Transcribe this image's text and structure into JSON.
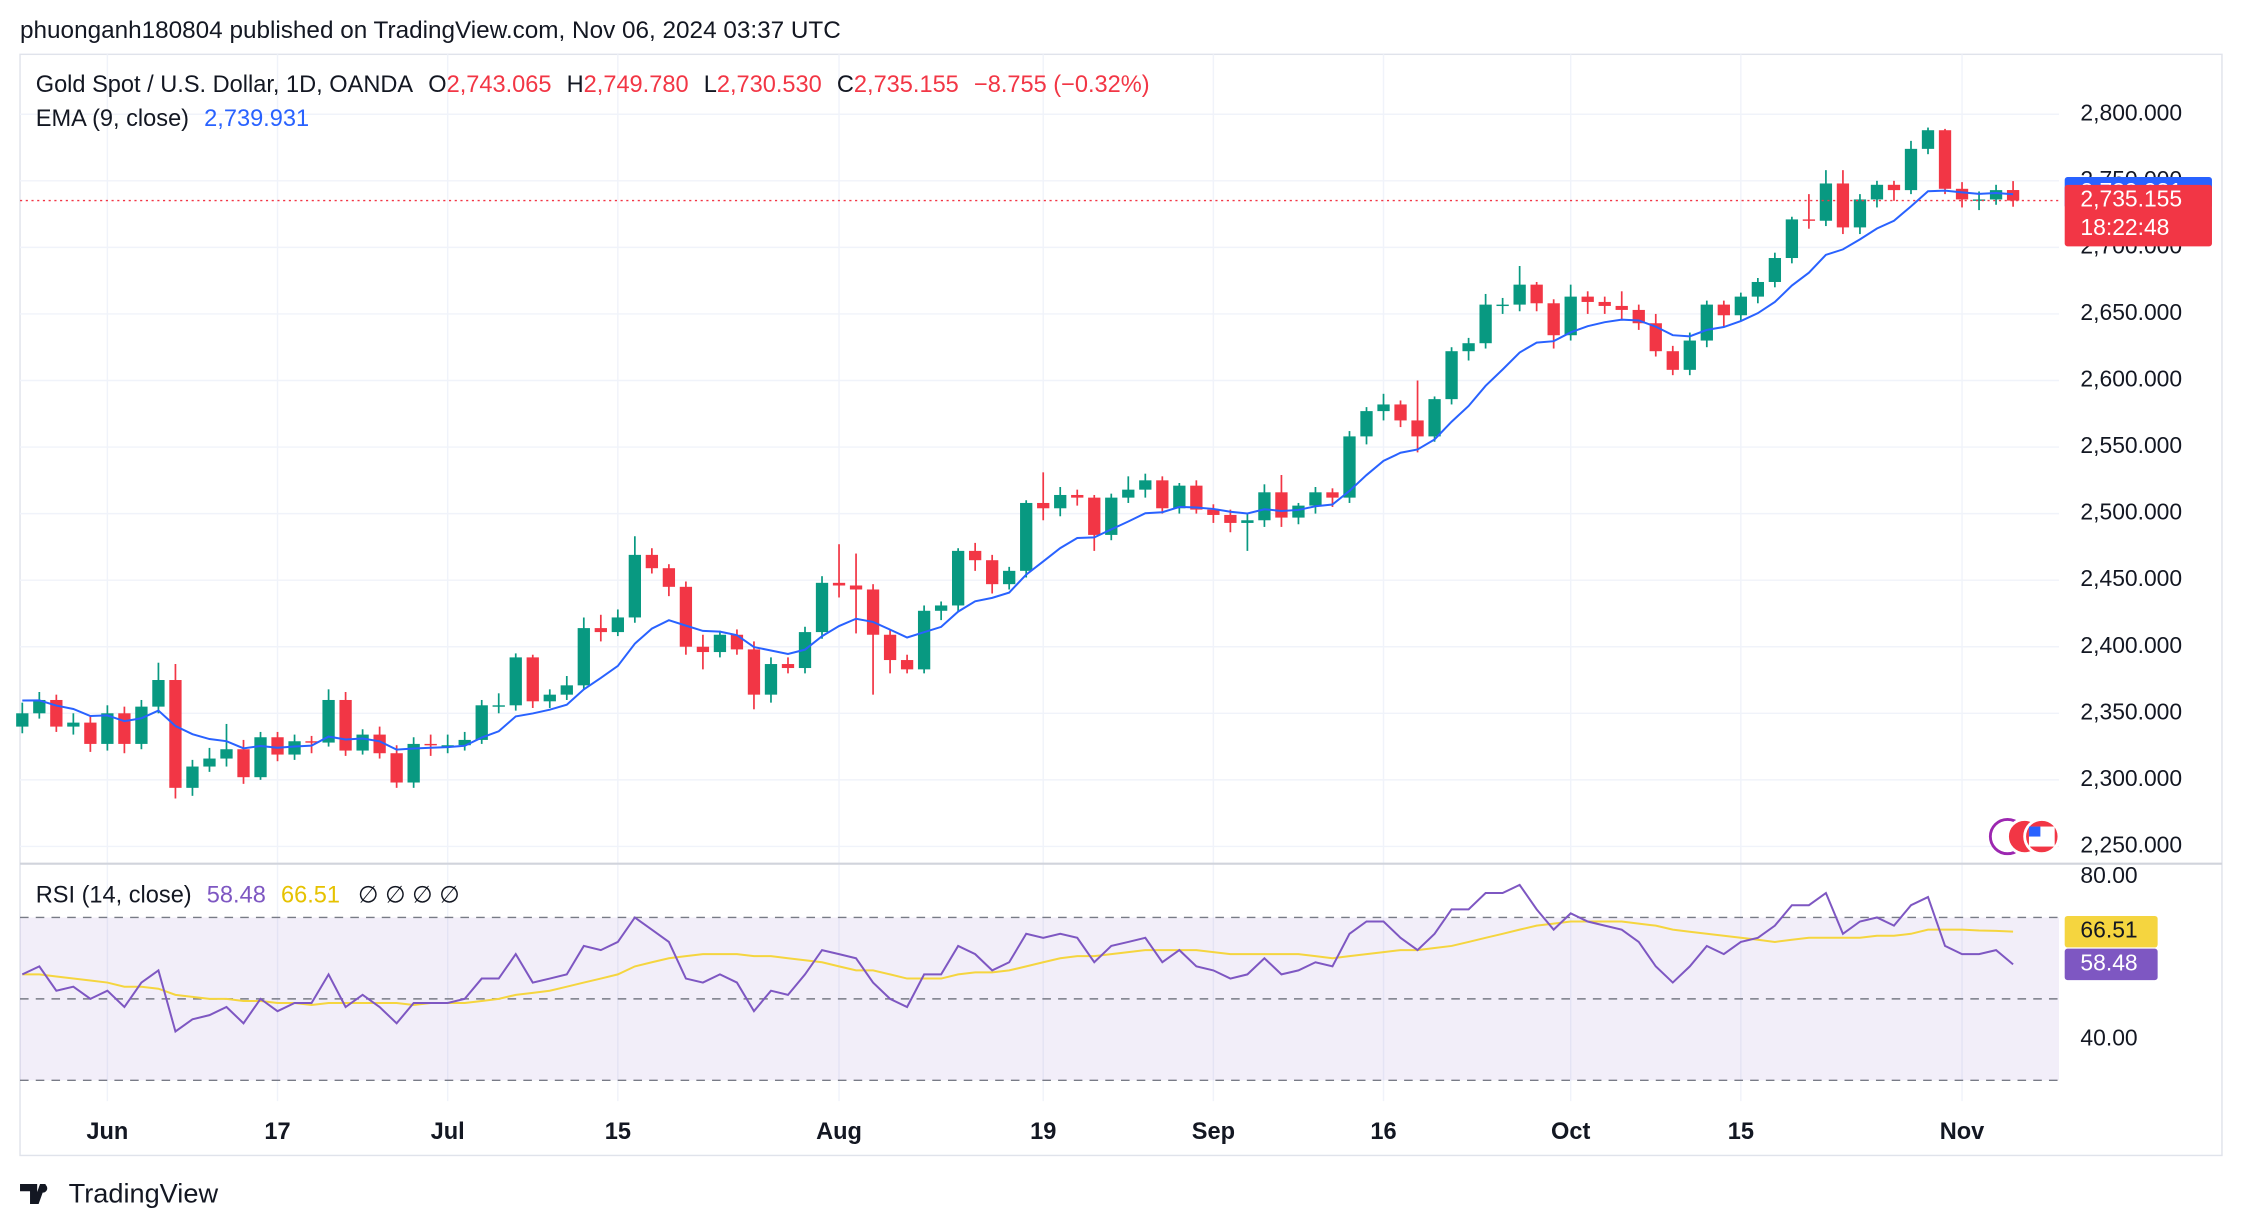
{
  "header": "phuonganh180804 published on TradingView.com, Nov 06, 2024 03:37 UTC",
  "footer": "TradingView",
  "chart_data": [
    {
      "type": "candlestick",
      "legend": [
        "Gold Spot / U.S. Dollar, 1D, OANDA",
        "O",
        "2,743.065",
        "H",
        "2,749.780",
        "L",
        "2,730.530",
        "C",
        "2,735.155",
        "−8.755 (−0.32%)"
      ],
      "countdown": "18:22:48",
      "up_color": "#089981",
      "down_color": "#f23645",
      "ylim": [
        2237,
        2845
      ],
      "yticks": [
        {
          "value": 2250,
          "label": "2,250.000"
        },
        {
          "value": 2300,
          "label": "2,300.000"
        },
        {
          "value": 2350,
          "label": "2,350.000"
        },
        {
          "value": 2400,
          "label": "2,400.000"
        },
        {
          "value": 2450,
          "label": "2,450.000"
        },
        {
          "value": 2500,
          "label": "2,500.000"
        },
        {
          "value": 2550,
          "label": "2,550.000"
        },
        {
          "value": 2600,
          "label": "2,600.000"
        },
        {
          "value": 2650,
          "label": "2,650.000"
        },
        {
          "value": 2700,
          "label": "2,700.000"
        },
        {
          "value": 2750,
          "label": "2,750.000"
        },
        {
          "value": 2800,
          "label": "2,800.000"
        }
      ],
      "xticks": [
        {
          "value": 5,
          "label": "Jun"
        },
        {
          "value": 15,
          "label": "17"
        },
        {
          "value": 25,
          "label": "Jul"
        },
        {
          "value": 35,
          "label": "15"
        },
        {
          "value": 48,
          "label": "Aug"
        },
        {
          "value": 60,
          "label": "19"
        },
        {
          "value": 70,
          "label": "Sep"
        },
        {
          "value": 80,
          "label": "16"
        },
        {
          "value": 91,
          "label": "Oct"
        },
        {
          "value": 101,
          "label": "15"
        },
        {
          "value": 114,
          "label": "Nov"
        }
      ],
      "grid": true,
      "open": [
        2340,
        2350,
        2360,
        2340,
        2343,
        2327,
        2350,
        2327,
        2355,
        2375,
        2294,
        2310,
        2316,
        2323,
        2302,
        2332,
        2319,
        2329,
        2328,
        2360,
        2322,
        2334,
        2320,
        2298,
        2327,
        2326,
        2326,
        2330,
        2356,
        2356,
        2392,
        2359,
        2364,
        2371,
        2414,
        2411,
        2422,
        2469,
        2459,
        2445,
        2400,
        2396,
        2409,
        2398,
        2364,
        2387,
        2384,
        2411,
        2448,
        2446,
        2443,
        2409,
        2390,
        2383,
        2427,
        2431,
        2472,
        2465,
        2447,
        2457,
        2508,
        2504,
        2514,
        2512,
        2484,
        2512,
        2518,
        2525,
        2504,
        2521,
        2503,
        2499,
        2493,
        2495,
        2516,
        2497,
        2506,
        2516,
        2512,
        2558,
        2577,
        2582,
        2570,
        2558,
        2586,
        2622,
        2628,
        2657,
        2657,
        2672,
        2658,
        2634,
        2663,
        2659,
        2656,
        2653,
        2643,
        2622,
        2608,
        2630,
        2657,
        2649,
        2663,
        2674,
        2692,
        2721,
        2720,
        2748,
        2715,
        2736,
        2747,
        2743,
        2774,
        2788,
        2744,
        2736,
        2736,
        2743.065
      ],
      "high": [
        2358,
        2366,
        2364,
        2350,
        2348,
        2356,
        2355,
        2360,
        2388,
        2387,
        2315,
        2324,
        2342,
        2330,
        2336,
        2336,
        2334,
        2333,
        2368,
        2366,
        2338,
        2340,
        2326,
        2332,
        2334,
        2334,
        2336,
        2360,
        2365,
        2395,
        2394,
        2368,
        2378,
        2422,
        2424,
        2428,
        2483,
        2474,
        2462,
        2449,
        2409,
        2412,
        2413,
        2404,
        2392,
        2392,
        2415,
        2453,
        2477,
        2470,
        2447,
        2413,
        2394,
        2431,
        2434,
        2474,
        2478,
        2469,
        2460,
        2510,
        2531,
        2520,
        2518,
        2514,
        2515,
        2528,
        2530,
        2528,
        2523,
        2525,
        2507,
        2503,
        2500,
        2522,
        2529,
        2508,
        2520,
        2519,
        2562,
        2580,
        2590,
        2585,
        2600,
        2588,
        2625,
        2632,
        2665,
        2662,
        2686,
        2674,
        2661,
        2672,
        2667,
        2663,
        2667,
        2657,
        2650,
        2626,
        2636,
        2660,
        2660,
        2666,
        2677,
        2696,
        2723,
        2740,
        2758,
        2758,
        2740,
        2750,
        2750,
        2780,
        2790,
        2789,
        2749,
        2742,
        2747,
        2749.78
      ],
      "low": [
        2335,
        2346,
        2336,
        2334,
        2321,
        2322,
        2320,
        2323,
        2350,
        2286,
        2288,
        2306,
        2310,
        2297,
        2300,
        2314,
        2315,
        2320,
        2325,
        2318,
        2319,
        2316,
        2294,
        2294,
        2318,
        2320,
        2322,
        2327,
        2350,
        2352,
        2354,
        2354,
        2360,
        2368,
        2404,
        2408,
        2418,
        2455,
        2438,
        2394,
        2383,
        2392,
        2394,
        2353,
        2358,
        2380,
        2380,
        2406,
        2437,
        2410,
        2364,
        2380,
        2380,
        2380,
        2420,
        2426,
        2457,
        2440,
        2443,
        2452,
        2495,
        2498,
        2506,
        2472,
        2480,
        2508,
        2512,
        2500,
        2500,
        2500,
        2493,
        2486,
        2472,
        2490,
        2490,
        2492,
        2500,
        2505,
        2508,
        2552,
        2570,
        2565,
        2546,
        2554,
        2582,
        2615,
        2624,
        2650,
        2652,
        2652,
        2624,
        2630,
        2650,
        2650,
        2645,
        2638,
        2618,
        2604,
        2604,
        2625,
        2640,
        2645,
        2658,
        2670,
        2688,
        2714,
        2716,
        2710,
        2710,
        2730,
        2735,
        2740,
        2770,
        2740,
        2730,
        2728,
        2732,
        2730.53
      ],
      "close": [
        2350,
        2360,
        2340,
        2343,
        2327,
        2350,
        2327,
        2355,
        2375,
        2294,
        2310,
        2316,
        2323,
        2302,
        2332,
        2319,
        2329,
        2328,
        2360,
        2322,
        2334,
        2320,
        2298,
        2327,
        2326,
        2326,
        2330,
        2356,
        2356,
        2392,
        2359,
        2364,
        2371,
        2414,
        2411,
        2422,
        2469,
        2459,
        2445,
        2400,
        2396,
        2409,
        2398,
        2364,
        2387,
        2384,
        2411,
        2448,
        2446,
        2443,
        2409,
        2390,
        2383,
        2427,
        2431,
        2472,
        2465,
        2447,
        2457,
        2508,
        2504,
        2514,
        2512,
        2484,
        2512,
        2518,
        2525,
        2504,
        2521,
        2503,
        2499,
        2493,
        2495,
        2516,
        2497,
        2506,
        2516,
        2512,
        2558,
        2577,
        2582,
        2570,
        2558,
        2586,
        2622,
        2628,
        2657,
        2657,
        2672,
        2658,
        2634,
        2663,
        2659,
        2656,
        2653,
        2643,
        2622,
        2608,
        2630,
        2657,
        2649,
        2663,
        2674,
        2692,
        2721,
        2720,
        2748,
        2715,
        2736,
        2747,
        2743,
        2774,
        2788,
        2744,
        2736,
        2736,
        2743,
        2735.155
      ],
      "ema": {
        "name": "EMA (9, close)",
        "color": "#2962ff",
        "value_label": "2,739.931",
        "values": [
          2359.6,
          2359.7,
          2355.8,
          2353.2,
          2348.0,
          2348.4,
          2344.1,
          2346.3,
          2352.0,
          2340.4,
          2334.3,
          2330.7,
          2329.1,
          2323.7,
          2325.4,
          2324.1,
          2325.1,
          2325.7,
          2332.5,
          2330.4,
          2331.1,
          2328.9,
          2322.7,
          2323.6,
          2324.1,
          2324.5,
          2325.6,
          2331.7,
          2336.5,
          2347.6,
          2349.9,
          2352.7,
          2356.4,
          2367.9,
          2376.5,
          2385.6,
          2402.3,
          2413.6,
          2419.9,
          2415.9,
          2411.9,
          2411.3,
          2408.7,
          2399.7,
          2397.2,
          2394.6,
          2397.8,
          2407.9,
          2415.5,
          2421.0,
          2418.6,
          2412.9,
          2406.9,
          2410.9,
          2414.9,
          2426.4,
          2434.1,
          2436.7,
          2440.7,
          2454.2,
          2464.1,
          2474.1,
          2481.7,
          2482.1,
          2488.1,
          2494.1,
          2500.3,
          2501.0,
          2505.0,
          2504.6,
          2503.5,
          2501.4,
          2500.1,
          2503.3,
          2502.0,
          2502.8,
          2505.5,
          2506.8,
          2517.0,
          2529.0,
          2539.6,
          2545.7,
          2548.2,
          2555.7,
          2569.0,
          2580.8,
          2596.0,
          2608.2,
          2621.0,
          2628.4,
          2629.5,
          2636.2,
          2640.8,
          2643.8,
          2645.7,
          2645.1,
          2640.5,
          2634.0,
          2633.2,
          2638.0,
          2640.2,
          2644.7,
          2650.6,
          2658.9,
          2671.3,
          2681.0,
          2694.4,
          2698.5,
          2706.0,
          2714.2,
          2720.0,
          2730.8,
          2742.2,
          2742.6,
          2741.3,
          2740.2,
          2740.8,
          2739.931
        ]
      }
    },
    {
      "type": "line",
      "title": "RSI (14, close)",
      "extra": "∅ ∅ ∅ ∅",
      "ylim": [
        24.9,
        83.2
      ],
      "yticks": [
        {
          "value": 80,
          "label": "80.00"
        },
        {
          "value": 40,
          "label": "40.00"
        }
      ],
      "bands": [
        70,
        50,
        30
      ],
      "band_color": "#7e57c2",
      "series": [
        {
          "color": "#7e57c2",
          "value_label": "58.48",
          "values": [
            56,
            58,
            52,
            53,
            50,
            52,
            48,
            54,
            57,
            42,
            45,
            46,
            48,
            44,
            50,
            47,
            49,
            49,
            56,
            48,
            51,
            48,
            44,
            49,
            49,
            49,
            50,
            55,
            55,
            61,
            54,
            55,
            56,
            63,
            62,
            64,
            70,
            67,
            64,
            55,
            54,
            56,
            54,
            47,
            52,
            51,
            56,
            62,
            61,
            60,
            54,
            50,
            48,
            56,
            56,
            63,
            61,
            57,
            59,
            66,
            65,
            66,
            65,
            59,
            63,
            64,
            65,
            59,
            62,
            58,
            57,
            55,
            56,
            60,
            56,
            57,
            59,
            58,
            66,
            69,
            69,
            65,
            62,
            66,
            72,
            72,
            76,
            76,
            78,
            72,
            67,
            71,
            69,
            68,
            67,
            64,
            58,
            54,
            58,
            63,
            61,
            64,
            65,
            68,
            73,
            73,
            76,
            66,
            69,
            70,
            68,
            73,
            75,
            63,
            61,
            61,
            62,
            58.48
          ]
        },
        {
          "color": "#f5d53f",
          "value_label": "66.51",
          "values": [
            56,
            56,
            55.5,
            55,
            54.5,
            54,
            53,
            53,
            52.5,
            51,
            50.5,
            50,
            50,
            49.5,
            49.5,
            49,
            49,
            48.5,
            49,
            49,
            49,
            49,
            49,
            48.5,
            49,
            49,
            49,
            49.5,
            50,
            51,
            51.5,
            52,
            53,
            54,
            55,
            56,
            58,
            59,
            60,
            60.5,
            61,
            61,
            61,
            60.5,
            60.5,
            60,
            59.5,
            59,
            58,
            57,
            57,
            56,
            55,
            55,
            55,
            56,
            56.5,
            56.5,
            57,
            58,
            59,
            60,
            60.5,
            60.5,
            61,
            61.5,
            62,
            62,
            62,
            62,
            61.5,
            61,
            61,
            61,
            61,
            61,
            60.5,
            60,
            60.5,
            61,
            61.5,
            62,
            62,
            62.5,
            63,
            64,
            65,
            66,
            67,
            68,
            68.5,
            69,
            69,
            69,
            69,
            68.5,
            68,
            67,
            66.5,
            66,
            65.5,
            65,
            64.5,
            64,
            64.5,
            65,
            65,
            65,
            65,
            65.5,
            65.5,
            66,
            67,
            67,
            67,
            66.8,
            66.7,
            66.51
          ]
        }
      ]
    }
  ]
}
